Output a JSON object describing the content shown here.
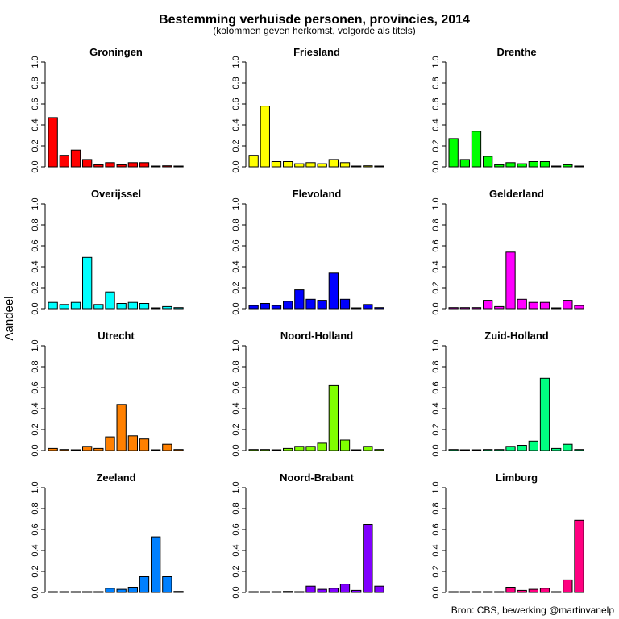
{
  "title": "Bestemming verhuisde personen, provincies, 2014",
  "subtitle": "(kolommen geven herkomst, volgorde als titels)",
  "ylabel": "Aandeel",
  "source": "Bron: CBS, bewerking @martinvanelp",
  "chart_data": {
    "type": "bar",
    "ylim": [
      0,
      1
    ],
    "yticks": [
      "0.0",
      "0.2",
      "0.4",
      "0.6",
      "0.8",
      "1.0"
    ],
    "categories": [
      "Groningen",
      "Friesland",
      "Drenthe",
      "Overijssel",
      "Flevoland",
      "Gelderland",
      "Utrecht",
      "Noord-Holland",
      "Zuid-Holland",
      "Zeeland",
      "Noord-Brabant",
      "Limburg"
    ],
    "panels": [
      {
        "title": "Groningen",
        "color": "#FF0000",
        "values": [
          0.47,
          0.11,
          0.16,
          0.07,
          0.02,
          0.04,
          0.02,
          0.04,
          0.04,
          0.005,
          0.01,
          0.005
        ]
      },
      {
        "title": "Friesland",
        "color": "#FFFF00",
        "values": [
          0.11,
          0.58,
          0.05,
          0.05,
          0.03,
          0.04,
          0.03,
          0.07,
          0.04,
          0.005,
          0.01,
          0.005
        ]
      },
      {
        "title": "Drenthe",
        "color": "#00FF00",
        "values": [
          0.27,
          0.07,
          0.34,
          0.1,
          0.02,
          0.04,
          0.03,
          0.05,
          0.05,
          0.005,
          0.02,
          0.005
        ]
      },
      {
        "title": "Overijssel",
        "color": "#00FFFF",
        "values": [
          0.06,
          0.04,
          0.06,
          0.49,
          0.04,
          0.16,
          0.05,
          0.06,
          0.05,
          0.005,
          0.02,
          0.01
        ]
      },
      {
        "title": "Flevoland",
        "color": "#0000FF",
        "values": [
          0.03,
          0.05,
          0.03,
          0.07,
          0.18,
          0.09,
          0.08,
          0.34,
          0.09,
          0.005,
          0.04,
          0.01
        ]
      },
      {
        "title": "Gelderland",
        "color": "#FF00FF",
        "values": [
          0.01,
          0.01,
          0.01,
          0.08,
          0.02,
          0.54,
          0.09,
          0.06,
          0.06,
          0.005,
          0.08,
          0.03
        ]
      },
      {
        "title": "Utrecht",
        "color": "#FF8000",
        "values": [
          0.02,
          0.01,
          0.005,
          0.04,
          0.02,
          0.13,
          0.44,
          0.14,
          0.11,
          0.005,
          0.06,
          0.01
        ]
      },
      {
        "title": "Noord-Holland",
        "color": "#80FF00",
        "values": [
          0.01,
          0.01,
          0.005,
          0.02,
          0.04,
          0.04,
          0.07,
          0.62,
          0.1,
          0.005,
          0.04,
          0.01
        ]
      },
      {
        "title": "Zuid-Holland",
        "color": "#00FF80",
        "values": [
          0.01,
          0.005,
          0.005,
          0.01,
          0.01,
          0.04,
          0.05,
          0.09,
          0.69,
          0.02,
          0.06,
          0.01
        ]
      },
      {
        "title": "Zeeland",
        "color": "#0080FF",
        "values": [
          0.005,
          0.005,
          0.005,
          0.005,
          0.005,
          0.04,
          0.03,
          0.05,
          0.15,
          0.53,
          0.15,
          0.01
        ]
      },
      {
        "title": "Noord-Brabant",
        "color": "#8000FF",
        "values": [
          0.005,
          0.005,
          0.003,
          0.01,
          0.005,
          0.06,
          0.03,
          0.04,
          0.08,
          0.02,
          0.65,
          0.06
        ]
      },
      {
        "title": "Limburg",
        "color": "#FF0080",
        "values": [
          0.005,
          0.005,
          0.003,
          0.005,
          0.005,
          0.05,
          0.02,
          0.03,
          0.04,
          0.005,
          0.12,
          0.69
        ]
      }
    ]
  }
}
